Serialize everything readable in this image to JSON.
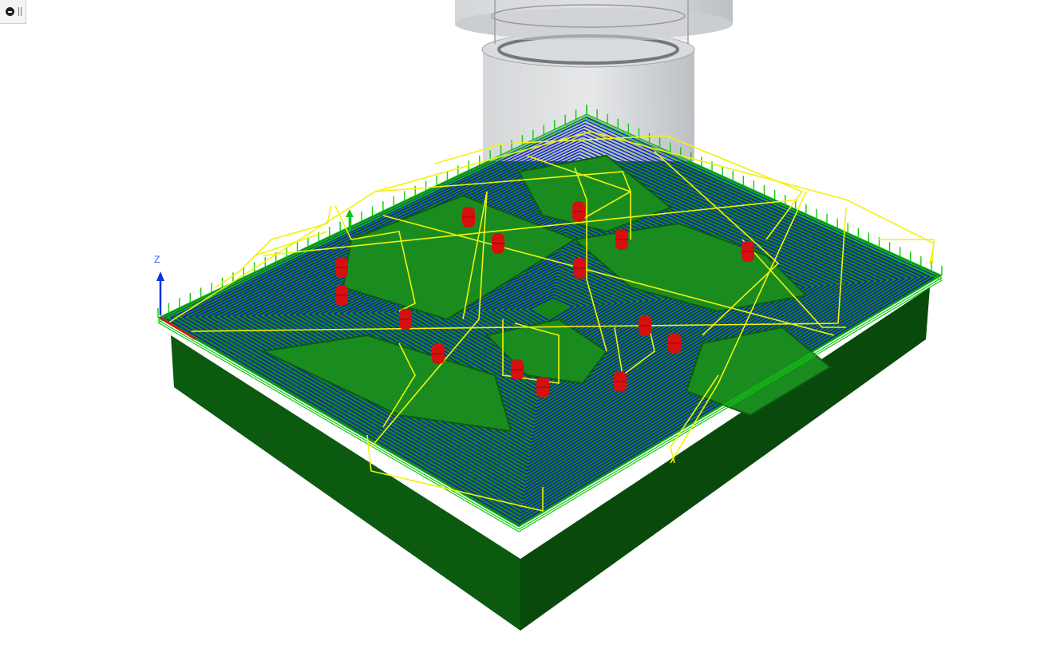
{
  "viewport": {
    "axis_label_z": "Z",
    "corner_control_icon": "view-toggle-icon"
  },
  "colors": {
    "stock_top": "#15851a",
    "stock_side_left": "#0b5710",
    "stock_side_right": "#0a4a0d",
    "toolpath_cut": "#1010d8",
    "toolpath_lead": "#12c812",
    "toolpath_rapid": "#f2f20a",
    "plunge_marker": "#d60f0f",
    "tool_holder": "#b8bcc2",
    "axis_z": "#1030e0",
    "axis_x": "#e01010",
    "axis_y": "#10c010"
  }
}
